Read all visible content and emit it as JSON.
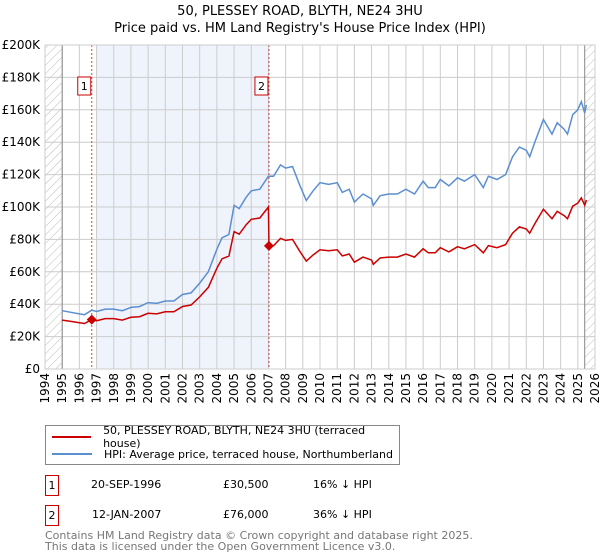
{
  "title_line1": "50, PLESSEY ROAD, BLYTH, NE24 3HU",
  "title_line2": "Price paid vs. HM Land Registry's House Price Index (HPI)",
  "colors": {
    "property": "#cc0000",
    "hpi": "#5b8fd0",
    "shade": "#eef3fc",
    "grid": "#cccccc"
  },
  "chart_data": {
    "type": "line",
    "title": "Price paid vs. HM Land Registry's House Price Index (HPI)",
    "xlim": [
      1994,
      2026
    ],
    "ylim": [
      0,
      200000
    ],
    "grid": true,
    "y_ticks": [
      0,
      20000,
      40000,
      60000,
      80000,
      100000,
      120000,
      140000,
      160000,
      180000,
      200000
    ],
    "y_tick_labels": [
      "£0",
      "£20K",
      "£40K",
      "£60K",
      "£80K",
      "£100K",
      "£120K",
      "£140K",
      "£160K",
      "£180K",
      "£200K"
    ],
    "x_tick_labels": [
      "1994",
      "1995",
      "1996",
      "1997",
      "1998",
      "1999",
      "2000",
      "2001",
      "2002",
      "2003",
      "2004",
      "2005",
      "2006",
      "2007",
      "2008",
      "2009",
      "2010",
      "2011",
      "2012",
      "2013",
      "2014",
      "2015",
      "2016",
      "2017",
      "2018",
      "2019",
      "2020",
      "2021",
      "2022",
      "2023",
      "2024",
      "2025",
      "2026"
    ],
    "shaded_range": [
      1997.0,
      2007.03
    ],
    "hatched_ranges": [
      [
        1994,
        1995
      ],
      [
        2025.4,
        2026
      ]
    ],
    "series": [
      {
        "name": "50, PLESSEY ROAD, BLYTH, NE24 3HU (terraced house)",
        "color": "#cc0000",
        "x": [
          1995,
          1995.5,
          1996,
          1996.3,
          1996.72,
          1997,
          1997.5,
          1998,
          1998.5,
          1999,
          1999.5,
          2000,
          2000.5,
          2001,
          2001.5,
          2002,
          2002.5,
          2003,
          2003.5,
          2004,
          2004.3,
          2004.7,
          2005,
          2005.3,
          2005.7,
          2006,
          2006.5,
          2007,
          2007.03,
          2007.3,
          2007.7,
          2008,
          2008.4,
          2008.8,
          2009.2,
          2009.6,
          2010,
          2010.5,
          2011,
          2011.3,
          2011.7,
          2012,
          2012.5,
          2013,
          2013.1,
          2013.5,
          2014,
          2014.5,
          2015,
          2015.5,
          2016,
          2016.3,
          2016.7,
          2017,
          2017.5,
          2018,
          2018.4,
          2019,
          2019.5,
          2019.8,
          2020.3,
          2020.8,
          2021.2,
          2021.6,
          2022,
          2022.2,
          2022.5,
          2023,
          2023.5,
          2023.8,
          2024.2,
          2024.4,
          2024.7,
          2025,
          2025.2,
          2025.4,
          2025.5
        ],
        "y": [
          30200,
          29400,
          28600,
          28100,
          30500,
          29800,
          31100,
          31100,
          30200,
          31900,
          32300,
          34400,
          34000,
          35300,
          35300,
          38600,
          39500,
          44500,
          50400,
          62200,
          68000,
          69700,
          84800,
          83200,
          89000,
          92400,
          93200,
          100000,
          76000,
          76200,
          80600,
          79400,
          80000,
          73000,
          66600,
          70400,
          73600,
          73000,
          73600,
          69800,
          71000,
          65900,
          69100,
          67200,
          64600,
          68500,
          69100,
          69100,
          71000,
          69100,
          74200,
          71700,
          71700,
          74900,
          72300,
          75500,
          74200,
          76800,
          71700,
          76200,
          74900,
          76800,
          83800,
          87700,
          86400,
          83800,
          89600,
          98600,
          92800,
          97300,
          94700,
          92800,
          100500,
          102400,
          105600,
          101100,
          104300
        ]
      },
      {
        "name": "HPI: Average price, terraced house, Northumberland",
        "color": "#5b8fd0",
        "x": [
          1995,
          1995.5,
          1996,
          1996.3,
          1996.72,
          1997,
          1997.5,
          1998,
          1998.5,
          1999,
          1999.5,
          2000,
          2000.5,
          2001,
          2001.5,
          2002,
          2002.5,
          2003,
          2003.5,
          2004,
          2004.3,
          2004.7,
          2005,
          2005.3,
          2005.7,
          2006,
          2006.5,
          2007,
          2007.03,
          2007.3,
          2007.7,
          2008,
          2008.4,
          2008.8,
          2009.2,
          2009.6,
          2010,
          2010.5,
          2011,
          2011.3,
          2011.7,
          2012,
          2012.5,
          2013,
          2013.1,
          2013.5,
          2014,
          2014.5,
          2015,
          2015.5,
          2016,
          2016.3,
          2016.7,
          2017,
          2017.5,
          2018,
          2018.4,
          2019,
          2019.5,
          2019.8,
          2020.3,
          2020.8,
          2021.2,
          2021.6,
          2022,
          2022.2,
          2022.5,
          2023,
          2023.5,
          2023.8,
          2024.2,
          2024.4,
          2024.7,
          2025,
          2025.2,
          2025.4,
          2025.5
        ],
        "y": [
          36000,
          35000,
          34000,
          33500,
          36300,
          35500,
          37000,
          37000,
          36000,
          38000,
          38500,
          41000,
          40500,
          42000,
          42000,
          46000,
          47000,
          53000,
          60000,
          74000,
          81000,
          83000,
          101000,
          99000,
          106000,
          110000,
          111000,
          119000,
          119000,
          119000,
          126000,
          124000,
          125000,
          114000,
          104000,
          110000,
          115000,
          114000,
          115000,
          109000,
          111000,
          103000,
          108000,
          105000,
          101000,
          107000,
          108000,
          108000,
          111000,
          108000,
          116000,
          112000,
          112000,
          117000,
          113000,
          118000,
          116000,
          120000,
          112000,
          119000,
          117000,
          120000,
          131000,
          137000,
          135000,
          131000,
          140000,
          154000,
          145000,
          152000,
          148000,
          145000,
          157000,
          160000,
          165000,
          158000,
          163000
        ]
      }
    ],
    "annotations": [
      {
        "label": "1",
        "x": 1996.72,
        "y": 30500
      },
      {
        "label": "2",
        "x": 2007.03,
        "y": 76000
      }
    ]
  },
  "legend": {
    "property": "50, PLESSEY ROAD, BLYTH, NE24 3HU (terraced house)",
    "hpi": "HPI: Average price, terraced house, Northumberland"
  },
  "sales": [
    {
      "num": "1",
      "date": "20-SEP-1996",
      "price": "£30,500",
      "delta": "16% ↓ HPI"
    },
    {
      "num": "2",
      "date": "12-JAN-2007",
      "price": "£76,000",
      "delta": "36% ↓ HPI"
    }
  ],
  "footer": {
    "line1": "Contains HM Land Registry data © Crown copyright and database right 2025.",
    "line2": "This data is licensed under the Open Government Licence v3.0."
  }
}
